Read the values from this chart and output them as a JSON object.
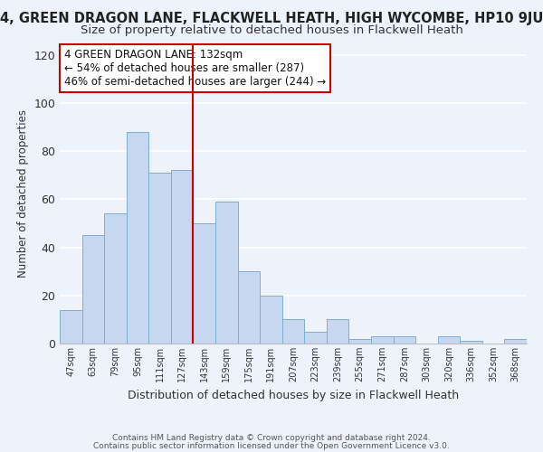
{
  "title": "4, GREEN DRAGON LANE, FLACKWELL HEATH, HIGH WYCOMBE, HP10 9JU",
  "subtitle": "Size of property relative to detached houses in Flackwell Heath",
  "xlabel": "Distribution of detached houses by size in Flackwell Heath",
  "ylabel": "Number of detached properties",
  "bar_labels": [
    "47sqm",
    "63sqm",
    "79sqm",
    "95sqm",
    "111sqm",
    "127sqm",
    "143sqm",
    "159sqm",
    "175sqm",
    "191sqm",
    "207sqm",
    "223sqm",
    "239sqm",
    "255sqm",
    "271sqm",
    "287sqm",
    "303sqm",
    "320sqm",
    "336sqm",
    "352sqm",
    "368sqm"
  ],
  "bar_values": [
    14,
    45,
    54,
    88,
    71,
    72,
    50,
    59,
    30,
    20,
    10,
    5,
    10,
    2,
    3,
    3,
    0,
    3,
    1,
    0,
    2
  ],
  "bar_color": "#c5d8f0",
  "bar_edge_color": "#7bafd4",
  "vline_x": 5.5,
  "vline_color": "#cc0000",
  "annotation_title": "4 GREEN DRAGON LANE: 132sqm",
  "annotation_line1": "← 54% of detached houses are smaller (287)",
  "annotation_line2": "46% of semi-detached houses are larger (244) →",
  "annotation_box_color": "#ffffff",
  "annotation_box_edge": "#cc0000",
  "ylim": [
    0,
    125
  ],
  "yticks": [
    0,
    20,
    40,
    60,
    80,
    100,
    120
  ],
  "footer1": "Contains HM Land Registry data © Crown copyright and database right 2024.",
  "footer2": "Contains public sector information licensed under the Open Government Licence v3.0.",
  "background_color": "#eef2fb",
  "grid_color": "#ffffff",
  "title_fontsize": 10.5,
  "subtitle_fontsize": 9.5
}
